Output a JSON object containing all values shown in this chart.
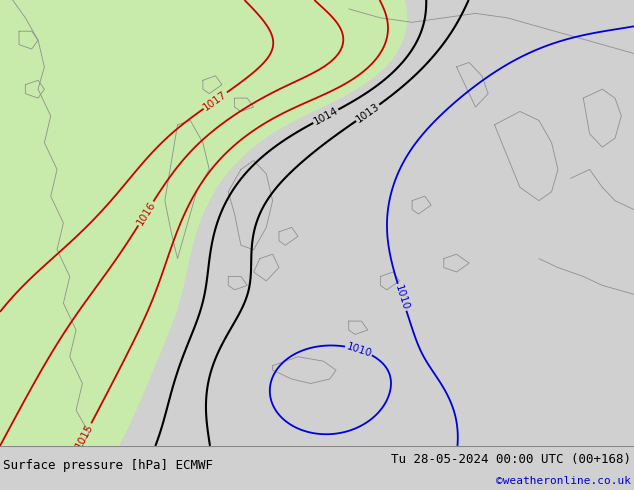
{
  "title_left": "Surface pressure [hPa] ECMWF",
  "title_right": "Tu 28-05-2024 00:00 UTC (00+168)",
  "copyright": "©weatheronline.co.uk",
  "bg_color": "#d0d0d0",
  "land_color": "#c8eaaa",
  "sea_color": "#d0d0d0",
  "border_color": "#909090",
  "red_contour_color": "#cc0000",
  "black_contour_color": "#000000",
  "blue_contour_color": "#0000dd",
  "label_fontsize": 7.5,
  "footer_fontsize": 9,
  "copyright_color": "#0000cc",
  "footer_bg": "#e8e8e8"
}
